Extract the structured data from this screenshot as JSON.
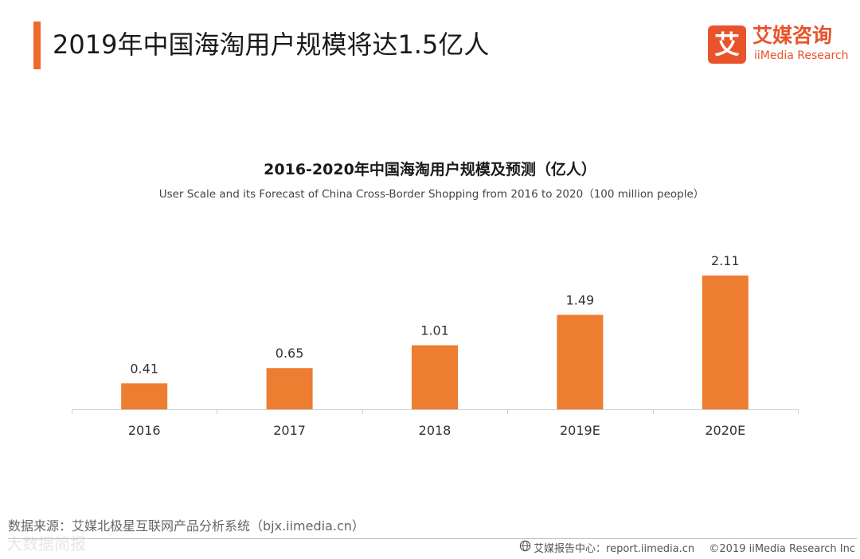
{
  "header": {
    "title": "2019年中国海淘用户规模将达1.5亿人",
    "accent_color": "#f06a2a"
  },
  "logo": {
    "mark": "艾",
    "cn": "艾媒咨询",
    "en": "iiMedia Research",
    "color": "#e8532b"
  },
  "chart_data": {
    "type": "bar",
    "title": "2016-2020年中国海淘用户规模及预测（亿人）",
    "subtitle": "User Scale and its Forecast of China Cross-Border Shopping from 2016 to 2020（100 million people）",
    "categories": [
      "2016",
      "2017",
      "2018",
      "2019E",
      "2020E"
    ],
    "values": [
      0.41,
      0.65,
      1.01,
      1.49,
      2.11
    ],
    "value_labels": [
      "0.41",
      "0.65",
      "1.01",
      "1.49",
      "2.11"
    ],
    "ylim": [
      0,
      2.11
    ],
    "xlabel": "",
    "ylabel": "",
    "grid": false,
    "bar_color": "#ed7d31"
  },
  "footer": {
    "source": "数据来源：艾媒北极星互联网产品分析系统（bjx.iimedia.cn）",
    "report_site": "艾媒报告中心：report.iimedia.cn",
    "copyright": "©2019  iiMedia Research  Inc",
    "watermark": "大数据简报"
  }
}
